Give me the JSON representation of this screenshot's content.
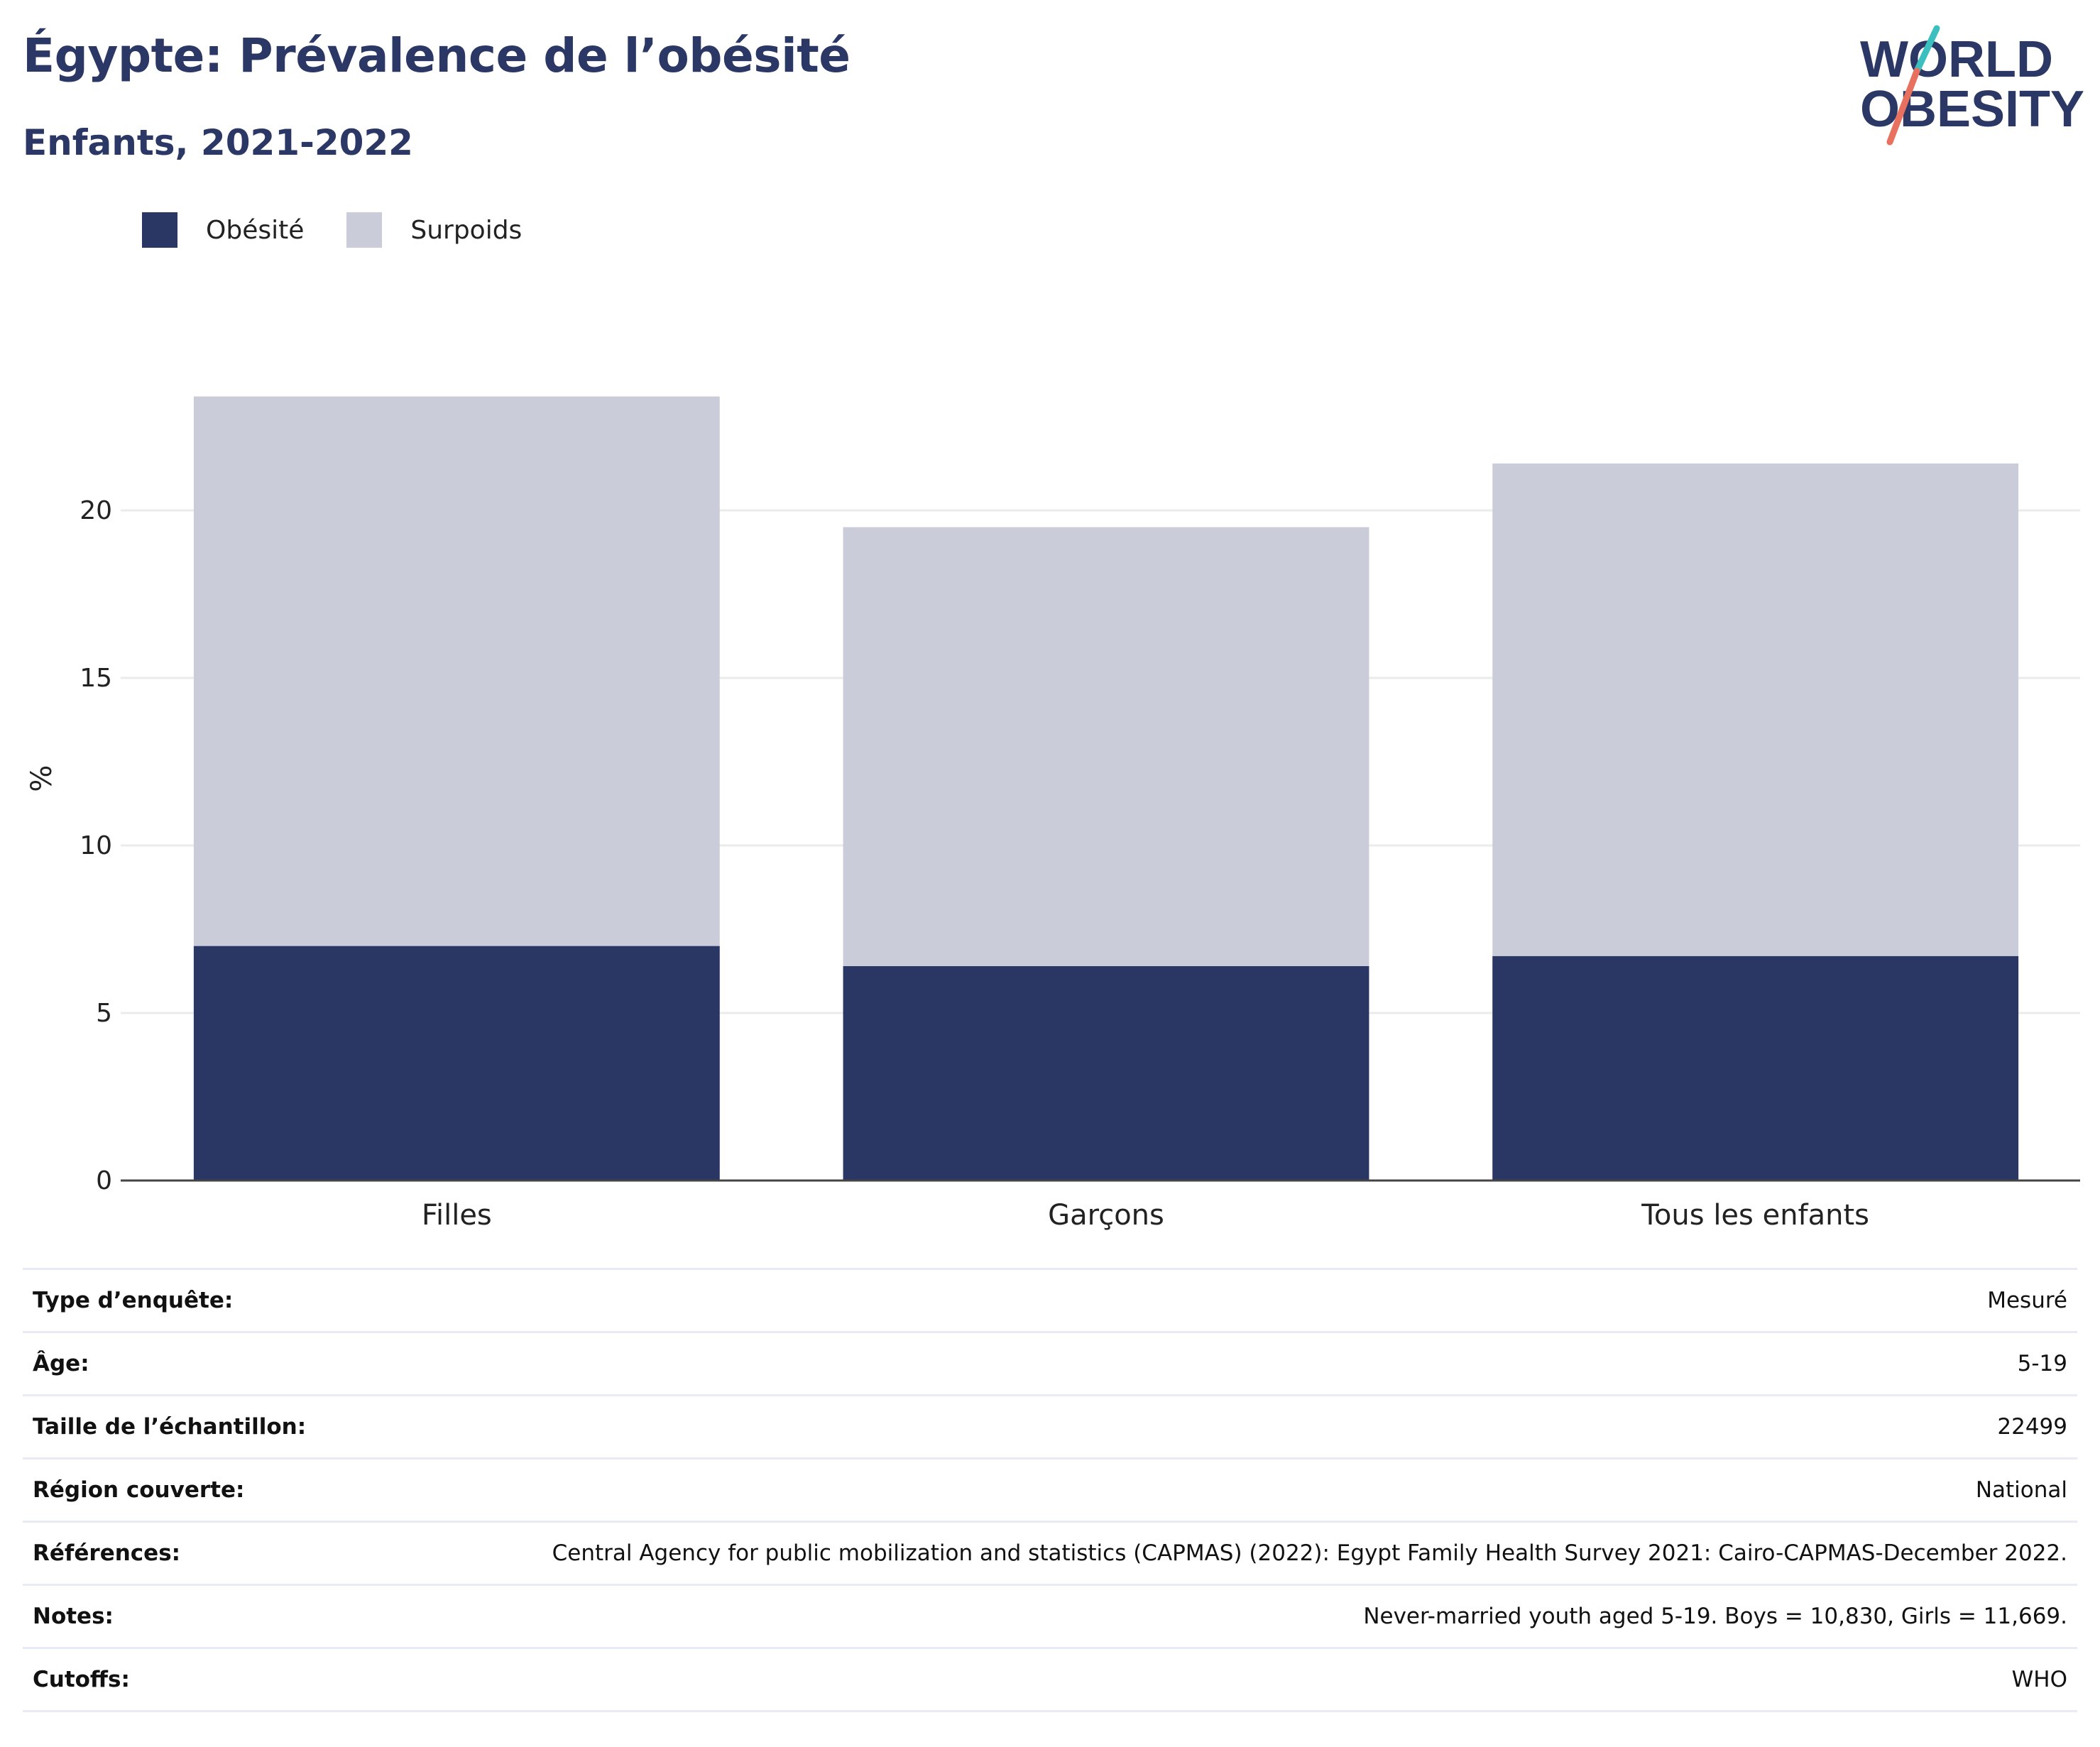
{
  "header": {
    "title": "Égypte: Prévalence de l’obésité",
    "subtitle": "Enfants, 2021-2022"
  },
  "logo": {
    "line1": "WORLD",
    "line2": "OBESITY"
  },
  "colors": {
    "obesity": "#2a3663",
    "overweight": "#cacdd9",
    "title": "#2b3764",
    "logo_teal": "#3cbfbf",
    "logo_coral": "#e8705e"
  },
  "chart_data": {
    "type": "bar",
    "stacked": true,
    "categories": [
      "Filles",
      "Garçons",
      "Tous les enfants"
    ],
    "series": [
      {
        "name": "Obésité",
        "values": [
          7.0,
          6.4,
          6.7
        ]
      },
      {
        "name": "Surpoids",
        "values": [
          16.4,
          13.1,
          14.7
        ]
      }
    ],
    "ylabel": "%",
    "xlabel": "",
    "ylim": [
      0,
      25
    ],
    "yticks": [
      0,
      5,
      10,
      15,
      20
    ],
    "grid": true,
    "legend_position": "top-left"
  },
  "info": {
    "rows": [
      {
        "key": "Type d’enquête:",
        "value": "Mesuré"
      },
      {
        "key": "Âge:",
        "value": "5-19"
      },
      {
        "key": "Taille de l’échantillon:",
        "value": "22499"
      },
      {
        "key": "Région couverte:",
        "value": "National"
      },
      {
        "key": "Références:",
        "value": "Central Agency for public mobilization and statistics (CAPMAS) (2022): Egypt Family Health Survey 2021: Cairo-CAPMAS-December 2022."
      },
      {
        "key": "Notes:",
        "value": "Never-married youth aged 5-19. Boys = 10,830, Girls = 11,669."
      },
      {
        "key": "Cutoffs:",
        "value": "WHO"
      }
    ]
  }
}
